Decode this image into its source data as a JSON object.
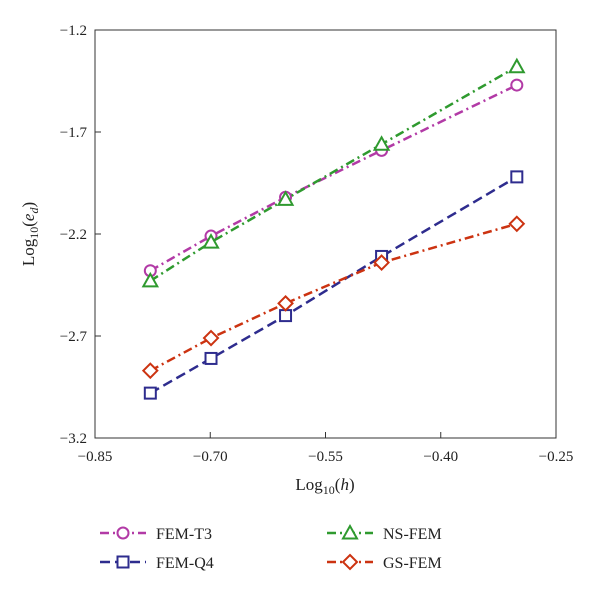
{
  "chart_data": {
    "type": "line",
    "xlabel": "Log10(h)",
    "ylabel": "Log10(ed)",
    "xlim": [
      -0.85,
      -0.25
    ],
    "ylim": [
      -3.2,
      -1.2
    ],
    "xticks": [
      -0.85,
      -0.7,
      -0.55,
      -0.4,
      -0.25
    ],
    "yticks": [
      -3.2,
      -2.7,
      -2.2,
      -1.7,
      -1.2
    ],
    "xtick_labels": [
      "−0.85",
      "−0.70",
      "−0.55",
      "−0.40",
      "−0.25"
    ],
    "ytick_labels": [
      "−3.2",
      "−2.7",
      "−2.2",
      "−1.7",
      "−1.2"
    ],
    "grid": false,
    "legend_placement": "below",
    "x": [
      -0.778,
      -0.699,
      -0.602,
      -0.477,
      -0.301
    ],
    "series": [
      {
        "name": "FEM-T3",
        "values": [
          -2.38,
          -2.21,
          -2.02,
          -1.79,
          -1.47
        ],
        "color": "#b23aa6",
        "marker": "circle",
        "dash": "dash-dot"
      },
      {
        "name": "FEM-Q4",
        "values": [
          -2.98,
          -2.81,
          -2.6,
          -2.31,
          -1.92
        ],
        "color": "#2e2c8e",
        "marker": "square",
        "dash": "dash"
      },
      {
        "name": "NS-FEM",
        "values": [
          -2.43,
          -2.24,
          -2.03,
          -1.76,
          -1.38
        ],
        "color": "#2f9a2f",
        "marker": "triangle",
        "dash": "dash-dot"
      },
      {
        "name": "GS-FEM",
        "values": [
          -2.87,
          -2.71,
          -2.54,
          -2.34,
          -2.15
        ],
        "color": "#cc3311",
        "marker": "diamond",
        "dash": "dash-dot"
      }
    ]
  }
}
